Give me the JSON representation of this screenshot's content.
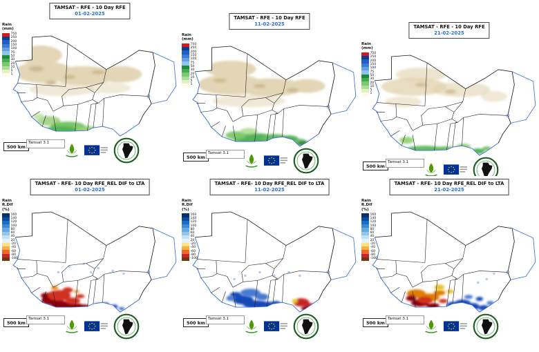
{
  "shared": {
    "scale_label": "500 km",
    "version": "Tamsat 3.1"
  },
  "panels": [
    {
      "title": "TAMSAT - RFE - 10 Day RFE",
      "date": "01-02-2025",
      "legend": "rain"
    },
    {
      "title": "TAMSAT - RFE - 10 Day RFE",
      "date": "11-02-2025",
      "legend": "rain"
    },
    {
      "title": "TAMSAT - RFE - 10 Day RFE",
      "date": "21-02-2025",
      "legend": "rain"
    },
    {
      "title": "TAMSAT - RFE- 10 Day RFE_REL DIF to LTA",
      "date": "01-02-2025",
      "legend": "rdif"
    },
    {
      "title": "TAMSAT - RFE- 10 Day RFE_REL DIF to LTA",
      "date": "11-02-2025",
      "legend": "rdif"
    },
    {
      "title": "TAMSAT - RFE- 10 Day RFE_REL DIF to LTA",
      "date": "21-02-2025",
      "legend": "rdif"
    }
  ],
  "legends": {
    "rain": {
      "title": [
        "Rain",
        "(mm)"
      ],
      "ticks": [
        "750",
        "250",
        "200",
        "150",
        "100",
        "75",
        "50",
        "30",
        "20",
        "10",
        "5",
        "1"
      ],
      "colors": [
        "#d7191c",
        "#0b3d91",
        "#1f5fc4",
        "#3a7bd5",
        "#62a0e0",
        "#8fc3ec",
        "#1e8a3c",
        "#44ad4f",
        "#7bc96f",
        "#aadf9a",
        "#e2f0c2",
        "#fdfbe9"
      ]
    },
    "rdif": {
      "title": [
        "Rain",
        "R.Dif",
        "(%)"
      ],
      "ticks": [
        "160",
        "140",
        "120",
        "100",
        "80",
        "60",
        "40",
        "20",
        "-20",
        "-40",
        "-60",
        "-80",
        "-100"
      ],
      "colors": [
        "#08306b",
        "#0b4ba0",
        "#1f6cc4",
        "#3a8ad5",
        "#66a9e0",
        "#93c6ec",
        "#c3e0f5",
        "#e4f1fa",
        "#ffe28a",
        "#f9b03e",
        "#ef6a2a",
        "#c62828",
        "#6b3a10"
      ]
    }
  },
  "icons": {
    "cilss": "cilss-plant-logo",
    "eu": "eu-flag-logo",
    "africa": "africa-map-logo"
  },
  "colors": {
    "date_text": "#2b6cd4",
    "coastline": "#3a6fd8",
    "country_border": "#1a1a1a"
  }
}
